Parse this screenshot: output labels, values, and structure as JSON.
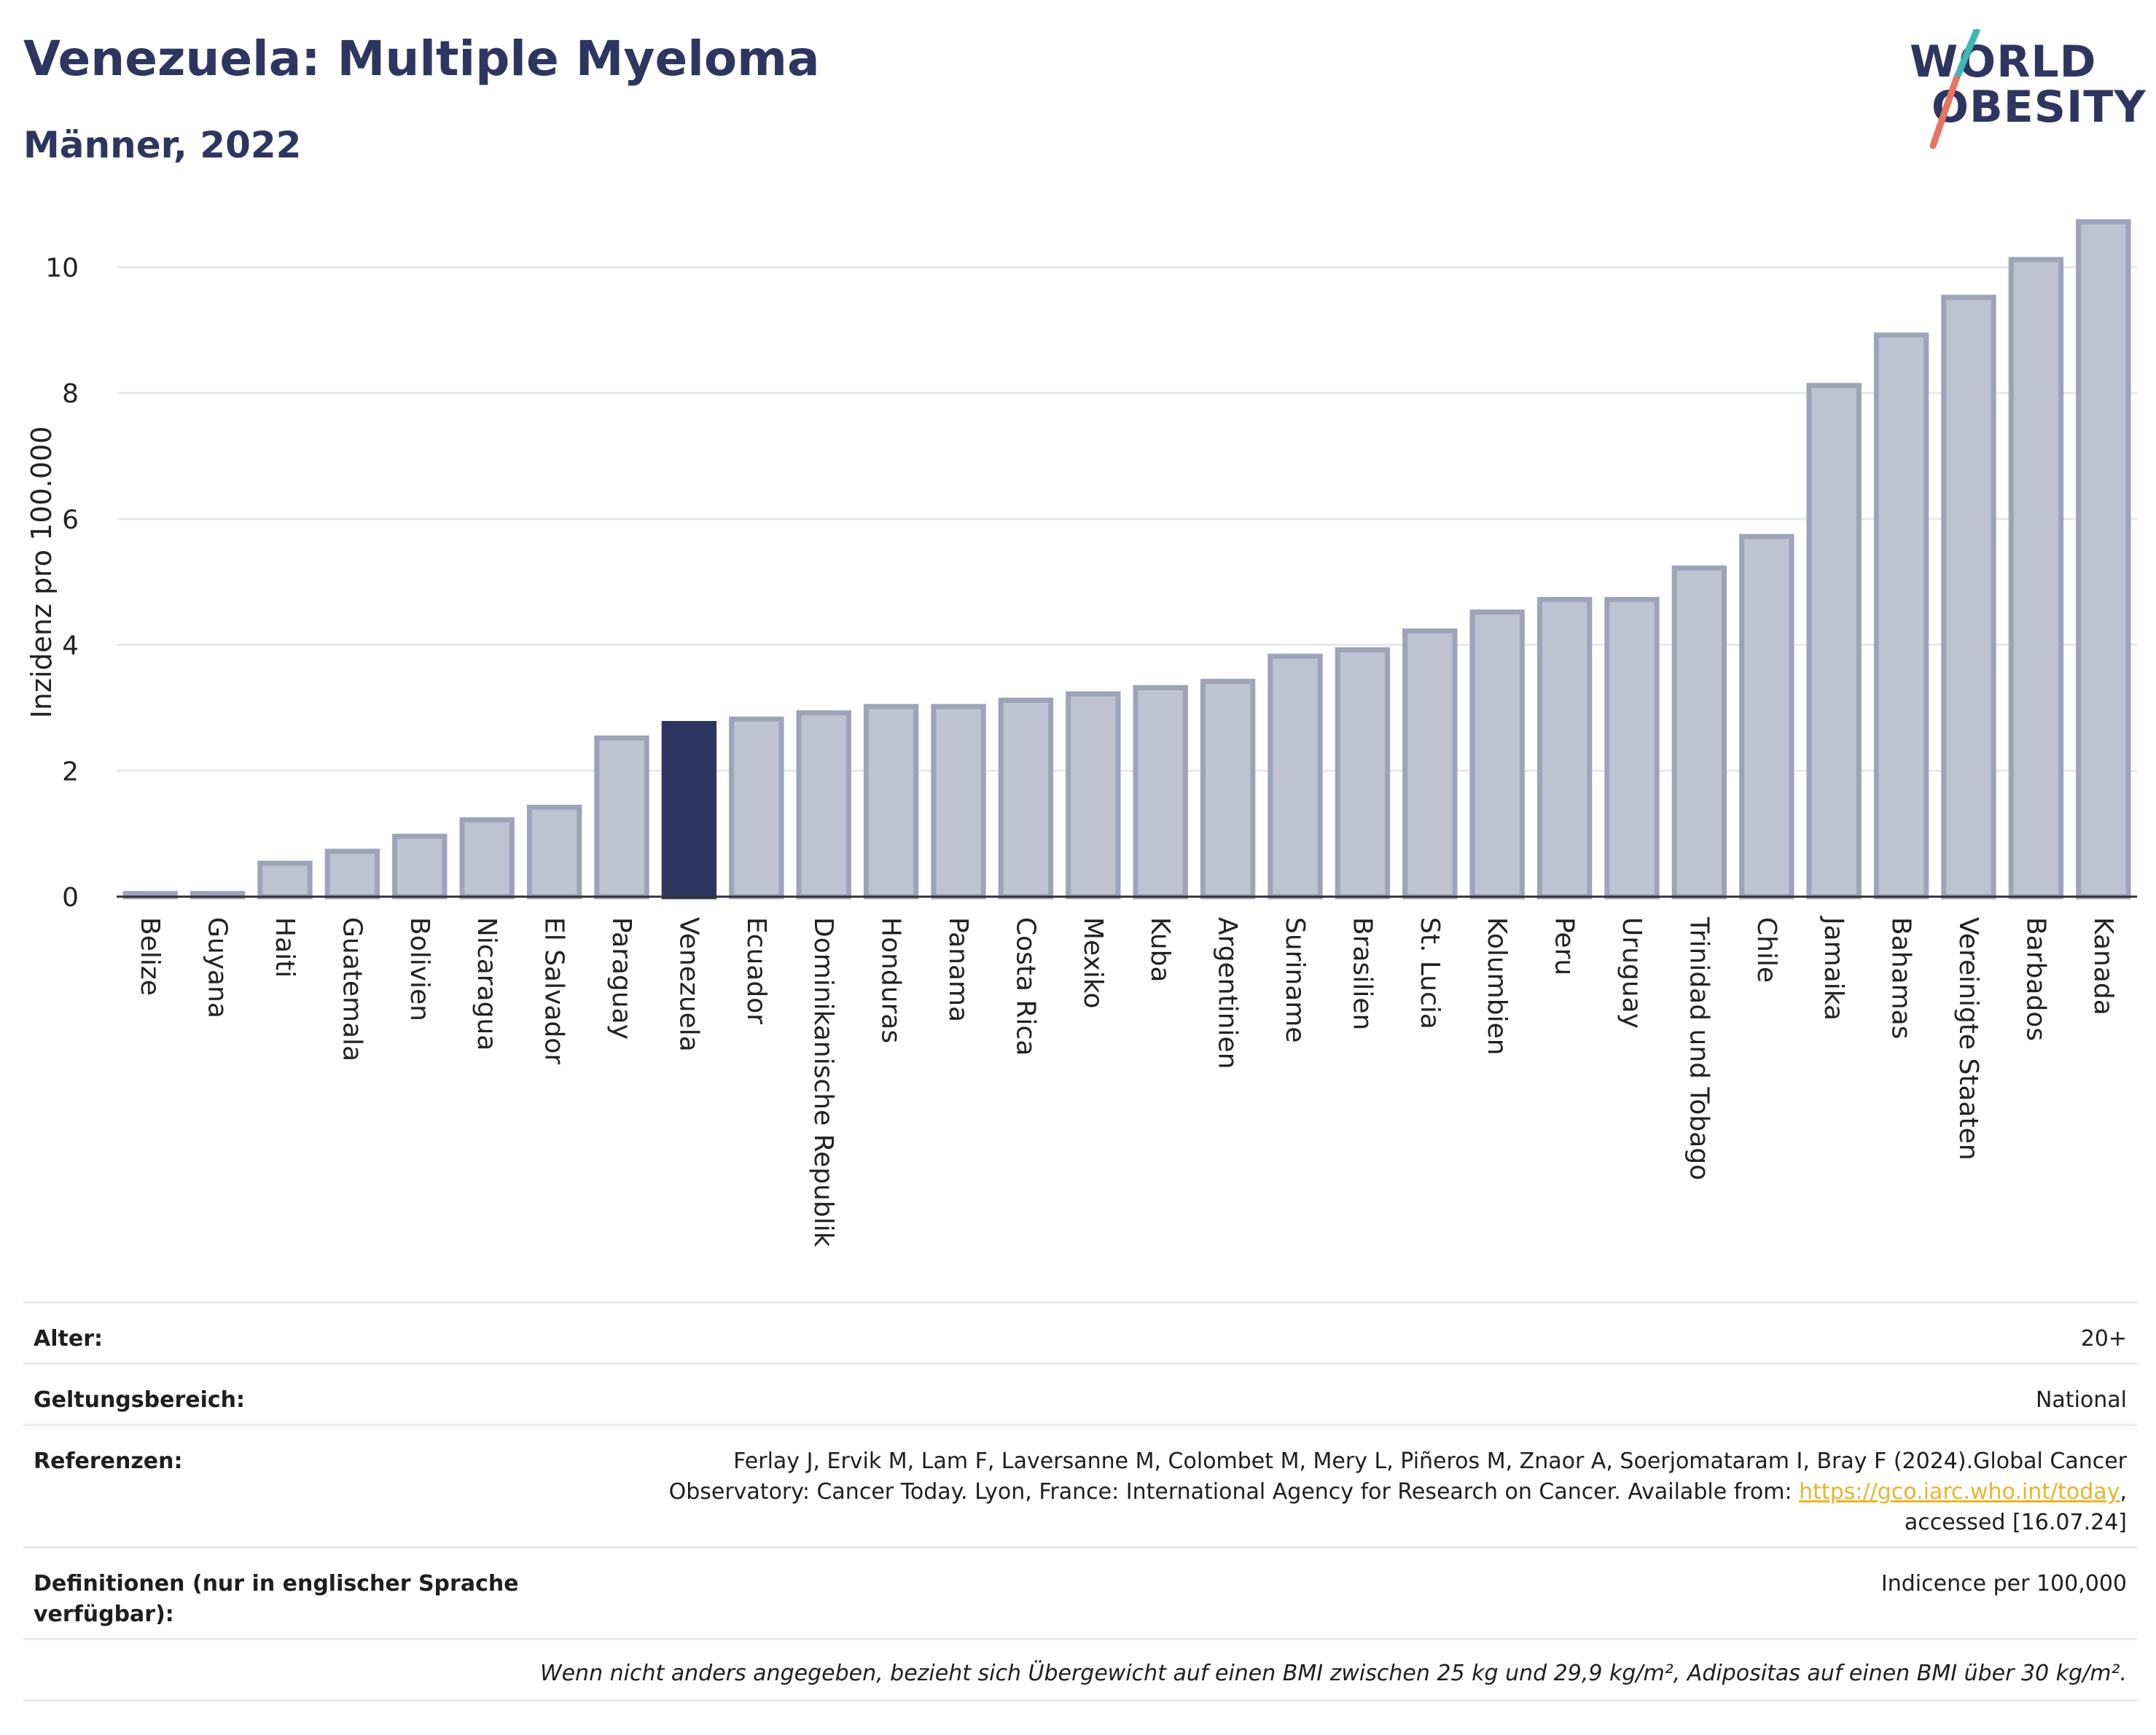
{
  "header": {
    "title": "Venezuela: Multiple Myeloma",
    "subtitle": "Männer, 2022",
    "logo_line1": "WORLD",
    "logo_line2": "OBESITY"
  },
  "colors": {
    "highlight": "#2d3660",
    "bar_fill": "#bfc3d1",
    "bar_stroke": "#9da3b9",
    "grid": "#e6e8ee",
    "logo_teal": "#3fb8b4",
    "logo_coral": "#e8735f"
  },
  "chart_data": {
    "type": "bar",
    "title": "Venezuela: Multiple Myeloma",
    "subtitle": "Männer, 2022",
    "ylabel": "Inzidenz pro 100.000",
    "xlabel": "",
    "ylim": [
      0,
      11
    ],
    "yticks": [
      0,
      2,
      4,
      6,
      8,
      10
    ],
    "grid": true,
    "highlight_category": "Venezuela",
    "categories": [
      "Belize",
      "Guyana",
      "Haiti",
      "Guatemala",
      "Bolivien",
      "Nicaragua",
      "El Salvador",
      "Paraguay",
      "Venezuela",
      "Ecuador",
      "Dominikanische Republik",
      "Honduras",
      "Panama",
      "Costa Rica",
      "Mexiko",
      "Kuba",
      "Argentinien",
      "Suriname",
      "Brasilien",
      "St. Lucia",
      "Kolumbien",
      "Peru",
      "Uruguay",
      "Trinidad und Tobago",
      "Chile",
      "Jamaika",
      "Bahamas",
      "Vereinigte Staaten",
      "Barbados",
      "Kanada"
    ],
    "values": [
      0.05,
      0.05,
      0.53,
      0.72,
      0.96,
      1.22,
      1.42,
      2.52,
      2.75,
      2.82,
      2.92,
      3.02,
      3.02,
      3.12,
      3.22,
      3.32,
      3.42,
      3.82,
      3.92,
      4.22,
      4.52,
      4.72,
      4.72,
      5.22,
      5.72,
      8.12,
      8.92,
      9.52,
      10.12,
      10.72
    ]
  },
  "meta": {
    "age_label": "Alter:",
    "age_value": "20+",
    "scope_label": "Geltungsbereich:",
    "scope_value": "National",
    "refs_label": "Referenzen:",
    "refs_text_1": "Ferlay J, Ervik M, Lam F, Laversanne M, Colombet M, Mery L, Piñeros M, Znaor A, Soerjomataram I, Bray F (2024).Global Cancer Observatory: Cancer Today. Lyon, France: International Agency for Research on Cancer. Available from: ",
    "refs_link": "https://gco.iarc.who.int/today",
    "refs_text_2": ", accessed [16.07.24]",
    "defs_label": "Definitionen (nur in englischer Sprache verfügbar):",
    "defs_value": "Indicence per 100,000",
    "footnote": "Wenn nicht anders angegeben, bezieht sich Übergewicht auf einen BMI zwischen 25 kg und 29,9 kg/m², Adipositas auf einen BMI über 30 kg/m²."
  }
}
